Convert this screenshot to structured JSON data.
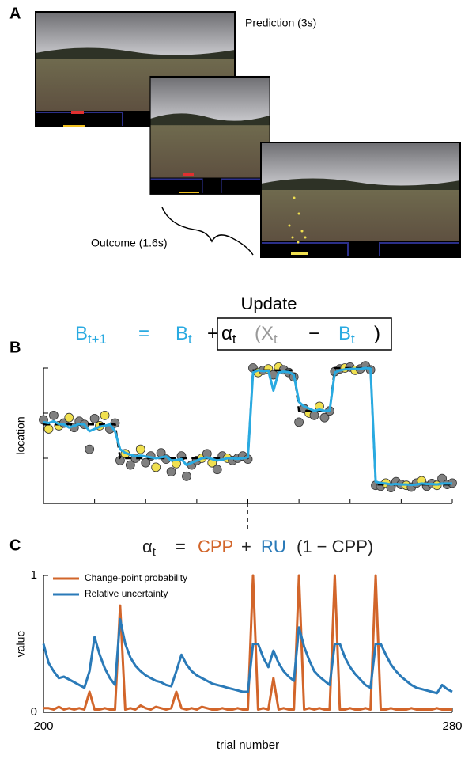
{
  "panel_a": {
    "label": "A",
    "prediction_label": "Prediction (3s)",
    "outcome_label": "Outcome (1.6s)"
  },
  "panel_b": {
    "label": "B",
    "update_label": "Update",
    "equation": [
      {
        "text": "B",
        "sub": "t+1",
        "color": "#29aae1"
      },
      {
        "text": "=",
        "color": "#29aae1"
      },
      {
        "text": "B",
        "sub": "t",
        "color": "#29aae1"
      },
      {
        "text": "+",
        "color": "#000000"
      },
      {
        "text": "α",
        "sub": "t",
        "color": "#000000"
      },
      {
        "text": "(X",
        "sub": "t",
        "color": "#999999"
      },
      {
        "text": "−",
        "color": "#000000"
      },
      {
        "text": "B",
        "sub": "t",
        "color": "#29aae1"
      },
      {
        "text": ")",
        "color": "#000000"
      }
    ]
  },
  "panel_c": {
    "label": "C",
    "equation": [
      {
        "text": "α",
        "sub": "t",
        "color": "#222222"
      },
      {
        "text": "=",
        "color": "#222222"
      },
      {
        "text": "CPP",
        "color": "#d2652a"
      },
      {
        "text": "+",
        "color": "#222222"
      },
      {
        "text": "RU",
        "color": "#2a7ab8"
      },
      {
        "text": "(1 − CPP)",
        "color": "#222222"
      }
    ]
  },
  "chart_data": [
    {
      "type": "line",
      "ylabel": "location",
      "show_tick_labels": false,
      "x": [
        200,
        201,
        202,
        203,
        204,
        205,
        206,
        207,
        208,
        209,
        210,
        211,
        212,
        213,
        214,
        215,
        216,
        217,
        218,
        219,
        220,
        221,
        222,
        223,
        224,
        225,
        226,
        227,
        228,
        229,
        230,
        231,
        232,
        233,
        234,
        235,
        236,
        237,
        238,
        239,
        240,
        241,
        242,
        243,
        244,
        245,
        246,
        247,
        248,
        249,
        250,
        251,
        252,
        253,
        254,
        255,
        256,
        257,
        258,
        259,
        260,
        261,
        262,
        263,
        264,
        265,
        266,
        267,
        268,
        269,
        270,
        271,
        272,
        273,
        274,
        275,
        276,
        277,
        278,
        279,
        280
      ],
      "xlim": [
        200,
        280
      ],
      "xticks": [
        200,
        210,
        220,
        230,
        240,
        250,
        260,
        270,
        280
      ],
      "ylim": [
        0,
        300
      ],
      "yticks": [
        0,
        100,
        200,
        300
      ],
      "series": [
        {
          "kind": "scatter",
          "values": [
            185,
            165,
            195,
            172,
            178,
            190,
            168,
            182,
            175,
            120,
            188,
            172,
            195,
            165,
            178,
            95,
            110,
            85,
            100,
            120,
            90,
            105,
            80,
            112,
            98,
            70,
            88,
            105,
            60,
            85,
            95,
            100,
            110,
            90,
            75,
            105,
            100,
            95,
            100,
            105,
            98,
            300,
            290,
            295,
            298,
            285,
            302,
            296,
            290,
            280,
            180,
            210,
            200,
            195,
            215,
            190,
            205,
            292,
            298,
            300,
            302,
            295,
            298,
            305,
            296,
            40,
            38,
            45,
            35,
            48,
            42,
            40,
            36,
            45,
            50,
            38,
            44,
            40,
            55,
            42,
            45
          ],
          "colors": [
            "#808080",
            "#f0e050",
            "#808080",
            "#f0e050",
            "#808080",
            "#f0e050",
            "#808080",
            "#808080",
            "#808080",
            "#808080",
            "#808080",
            "#f0e050",
            "#f0e050",
            "#808080",
            "#808080",
            "#808080",
            "#f0e050",
            "#808080",
            "#808080",
            "#f0e050",
            "#808080",
            "#808080",
            "#f0e050",
            "#808080",
            "#808080",
            "#808080",
            "#f0e050",
            "#808080",
            "#808080",
            "#808080",
            "#808080",
            "#f0e050",
            "#808080",
            "#f0e050",
            "#808080",
            "#808080",
            "#f0e050",
            "#808080",
            "#808080",
            "#808080",
            "#808080",
            "#808080",
            "#f0e050",
            "#808080",
            "#f0e050",
            "#808080",
            "#f0e050",
            "#808080",
            "#808080",
            "#808080",
            "#808080",
            "#808080",
            "#f0e050",
            "#808080",
            "#f0e050",
            "#808080",
            "#808080",
            "#808080",
            "#808080",
            "#f0e050",
            "#808080",
            "#f0e050",
            "#808080",
            "#808080",
            "#808080",
            "#808080",
            "#808080",
            "#f0e050",
            "#808080",
            "#808080",
            "#808080",
            "#f0e050",
            "#808080",
            "#808080",
            "#f0e050",
            "#808080",
            "#808080",
            "#f0e050",
            "#808080",
            "#808080",
            "#808080"
          ]
        },
        {
          "kind": "dashed",
          "color": "#000000",
          "values": [
            175,
            175,
            175,
            175,
            175,
            175,
            175,
            175,
            175,
            175,
            175,
            175,
            175,
            175,
            175,
            100,
            100,
            100,
            100,
            100,
            100,
            100,
            100,
            100,
            100,
            100,
            100,
            100,
            100,
            100,
            100,
            100,
            100,
            100,
            100,
            100,
            100,
            100,
            100,
            100,
            100,
            295,
            295,
            295,
            295,
            295,
            295,
            295,
            295,
            295,
            205,
            205,
            205,
            205,
            205,
            205,
            205,
            300,
            300,
            300,
            300,
            300,
            300,
            300,
            300,
            42,
            42,
            42,
            42,
            42,
            42,
            42,
            42,
            42,
            42,
            42,
            42,
            42,
            42,
            42,
            42
          ]
        },
        {
          "kind": "line",
          "color": "#29aae1",
          "values": [
            180,
            178,
            182,
            176,
            175,
            168,
            172,
            176,
            175,
            160,
            165,
            170,
            172,
            175,
            160,
            120,
            112,
            108,
            104,
            106,
            104,
            102,
            100,
            102,
            104,
            95,
            96,
            98,
            85,
            90,
            95,
            100,
            102,
            98,
            95,
            97,
            100,
            100,
            99,
            100,
            102,
            290,
            295,
            293,
            294,
            250,
            290,
            292,
            291,
            285,
            225,
            215,
            210,
            205,
            208,
            205,
            206,
            290,
            295,
            297,
            298,
            298,
            298,
            300,
            299,
            48,
            45,
            44,
            42,
            43,
            42,
            42,
            41,
            42,
            44,
            43,
            43,
            42,
            44,
            44,
            44
          ]
        }
      ]
    },
    {
      "type": "line",
      "ylabel": "value",
      "xlabel": "trial number",
      "legend": "top-left",
      "show_tick_labels": true,
      "x": [
        200,
        201,
        202,
        203,
        204,
        205,
        206,
        207,
        208,
        209,
        210,
        211,
        212,
        213,
        214,
        215,
        216,
        217,
        218,
        219,
        220,
        221,
        222,
        223,
        224,
        225,
        226,
        227,
        228,
        229,
        230,
        231,
        232,
        233,
        234,
        235,
        236,
        237,
        238,
        239,
        240,
        241,
        242,
        243,
        244,
        245,
        246,
        247,
        248,
        249,
        250,
        251,
        252,
        253,
        254,
        255,
        256,
        257,
        258,
        259,
        260,
        261,
        262,
        263,
        264,
        265,
        266,
        267,
        268,
        269,
        270,
        271,
        272,
        273,
        274,
        275,
        276,
        277,
        278,
        279,
        280
      ],
      "xlim": [
        200,
        280
      ],
      "xticks": [
        200,
        280
      ],
      "ylim": [
        0,
        1
      ],
      "yticks": [
        0,
        1
      ],
      "series": [
        {
          "kind": "line",
          "name": "Change-point probability",
          "color": "#d2652a",
          "values": [
            0.03,
            0.03,
            0.02,
            0.04,
            0.02,
            0.03,
            0.02,
            0.03,
            0.02,
            0.15,
            0.02,
            0.02,
            0.03,
            0.02,
            0.02,
            0.78,
            0.02,
            0.03,
            0.02,
            0.05,
            0.03,
            0.02,
            0.04,
            0.03,
            0.02,
            0.03,
            0.15,
            0.03,
            0.02,
            0.03,
            0.02,
            0.04,
            0.03,
            0.02,
            0.02,
            0.03,
            0.02,
            0.02,
            0.03,
            0.02,
            0.02,
            1.0,
            0.02,
            0.03,
            0.02,
            0.25,
            0.02,
            0.03,
            0.02,
            0.02,
            1.0,
            0.02,
            0.03,
            0.02,
            0.03,
            0.02,
            0.02,
            1.0,
            0.02,
            0.02,
            0.03,
            0.02,
            0.02,
            0.03,
            0.02,
            1.0,
            0.02,
            0.02,
            0.03,
            0.02,
            0.02,
            0.02,
            0.03,
            0.02,
            0.02,
            0.02,
            0.02,
            0.03,
            0.02,
            0.02,
            0.02
          ]
        },
        {
          "kind": "line",
          "name": "Relative uncertainty",
          "color": "#2a7ab8",
          "values": [
            0.5,
            0.36,
            0.3,
            0.25,
            0.26,
            0.24,
            0.22,
            0.2,
            0.18,
            0.3,
            0.55,
            0.42,
            0.32,
            0.25,
            0.2,
            0.68,
            0.5,
            0.4,
            0.34,
            0.3,
            0.27,
            0.25,
            0.23,
            0.22,
            0.2,
            0.19,
            0.3,
            0.42,
            0.35,
            0.3,
            0.27,
            0.25,
            0.23,
            0.21,
            0.2,
            0.19,
            0.18,
            0.17,
            0.16,
            0.15,
            0.15,
            0.5,
            0.5,
            0.4,
            0.33,
            0.45,
            0.36,
            0.3,
            0.26,
            0.23,
            0.62,
            0.48,
            0.38,
            0.3,
            0.26,
            0.23,
            0.2,
            0.5,
            0.5,
            0.4,
            0.33,
            0.28,
            0.24,
            0.2,
            0.18,
            0.5,
            0.5,
            0.42,
            0.35,
            0.3,
            0.26,
            0.23,
            0.2,
            0.18,
            0.17,
            0.16,
            0.15,
            0.14,
            0.2,
            0.17,
            0.15
          ]
        }
      ]
    }
  ]
}
